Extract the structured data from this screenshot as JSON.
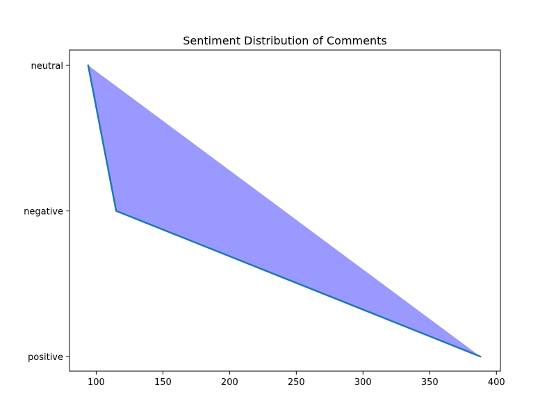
{
  "chart_data": {
    "type": "area",
    "title": "Sentiment Distribution of Comments",
    "xlabel": "",
    "ylabel": "",
    "xlim": [
      80,
      403
    ],
    "categories": [
      "neutral",
      "negative",
      "positive"
    ],
    "x": [
      94,
      115,
      388
    ],
    "y": [
      "neutral",
      "negative",
      "positive"
    ],
    "x_ticks": [
      100,
      150,
      200,
      250,
      300,
      350,
      400
    ],
    "fill_color": "#9999ff",
    "line_color": "#1f77b4",
    "grid": false,
    "legend": "none"
  }
}
